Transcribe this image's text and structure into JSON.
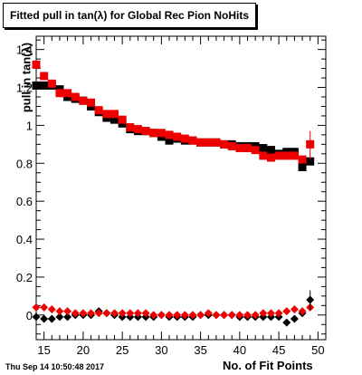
{
  "header": {
    "title": "Fitted pull in tan(λ) for Global Rec Pion NoHits",
    "timestamp": "Thu Sep 14 10:50:48 2017"
  },
  "chart_data": {
    "type": "scatter",
    "title": "Fitted pull in tan(λ) for Global Rec Pion NoHits",
    "xlabel": "No. of Fit Points",
    "ylabel": "pull in tan(λ)",
    "xlim": [
      14,
      51
    ],
    "ylim": [
      -0.13,
      1.47
    ],
    "xticks": [
      15,
      20,
      25,
      30,
      35,
      40,
      45,
      50
    ],
    "yticks": [
      0,
      0.2,
      0.4,
      0.6,
      0.8,
      1,
      1.2,
      1.4
    ],
    "grid": false,
    "colors": {
      "black": "#000000",
      "red": "#ee0000"
    },
    "x": [
      14,
      15,
      16,
      17,
      18,
      19,
      20,
      21,
      22,
      23,
      24,
      25,
      26,
      27,
      28,
      29,
      30,
      31,
      32,
      33,
      34,
      35,
      36,
      37,
      38,
      39,
      40,
      41,
      42,
      43,
      44,
      45,
      46,
      47,
      48,
      49
    ],
    "series": [
      {
        "marker": "square",
        "color": "#000000",
        "values": [
          1.21,
          1.21,
          1.21,
          1.19,
          1.15,
          1.14,
          1.13,
          1.1,
          1.07,
          1.04,
          1.03,
          1.01,
          0.98,
          0.97,
          0.97,
          0.96,
          0.94,
          0.92,
          0.93,
          0.92,
          0.92,
          0.91,
          0.91,
          0.91,
          0.9,
          0.9,
          0.89,
          0.89,
          0.89,
          0.88,
          0.87,
          0.85,
          0.86,
          0.86,
          0.78,
          0.81
        ]
      },
      {
        "marker": "square",
        "color": "#ee0000",
        "values": [
          1.32,
          1.26,
          1.22,
          1.17,
          1.17,
          1.15,
          1.13,
          1.12,
          1.08,
          1.06,
          1.06,
          1.03,
          0.99,
          0.98,
          0.97,
          0.96,
          0.96,
          0.95,
          0.94,
          0.93,
          0.92,
          0.91,
          0.91,
          0.91,
          0.9,
          0.89,
          0.88,
          0.88,
          0.87,
          0.84,
          0.83,
          0.84,
          0.84,
          0.84,
          0.82,
          0.9
        ]
      },
      {
        "marker": "diamond",
        "color": "#000000",
        "values": [
          -0.01,
          -0.02,
          -0.02,
          -0.01,
          -0.01,
          0.0,
          0.0,
          0.0,
          0.02,
          0.01,
          0.0,
          -0.01,
          -0.01,
          -0.01,
          -0.01,
          -0.01,
          0.0,
          -0.01,
          -0.01,
          -0.01,
          -0.01,
          0.0,
          0.0,
          0.0,
          0.0,
          0.0,
          -0.01,
          -0.01,
          -0.01,
          -0.01,
          -0.01,
          -0.01,
          -0.04,
          -0.02,
          0.01,
          0.08
        ]
      },
      {
        "marker": "diamond",
        "color": "#ee0000",
        "values": [
          0.04,
          0.04,
          0.03,
          0.02,
          0.02,
          0.01,
          0.01,
          0.01,
          0.01,
          0.01,
          0.01,
          0.01,
          0.01,
          0.01,
          0.01,
          0.0,
          0.0,
          0.0,
          0.0,
          0.0,
          0.0,
          0.0,
          0.01,
          0.0,
          0.0,
          0.0,
          0.0,
          0.0,
          0.0,
          0.01,
          0.01,
          0.01,
          0.02,
          0.03,
          0.02,
          0.04
        ]
      }
    ]
  }
}
